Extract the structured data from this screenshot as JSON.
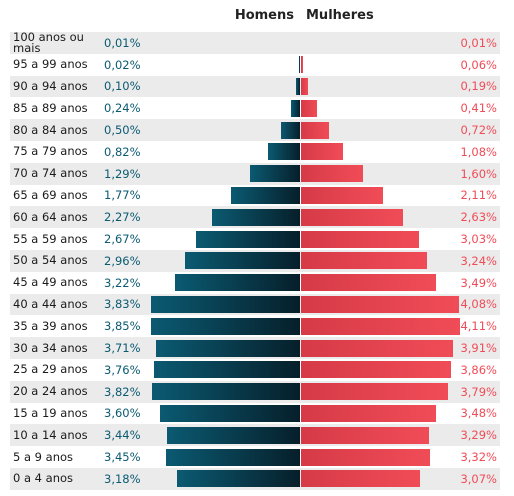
{
  "chart_data": {
    "type": "bar",
    "categories": [
      "100 anos ou mais",
      "95 a 99 anos",
      "90 a 94 anos",
      "85 a 89 anos",
      "80 a 84 anos",
      "75 a 79 anos",
      "70 a 74 anos",
      "65 a 69 anos",
      "60 a 64 anos",
      "55 a 59 anos",
      "50 a 54 anos",
      "45 a 49 anos",
      "40 a 44 anos",
      "35 a 39 anos",
      "30 a 34 anos",
      "25 a 29 anos",
      "20 a 24 anos",
      "15 a 19 anos",
      "10 a 14 anos",
      "5 a 9 anos",
      "0 a 4 anos"
    ],
    "series": [
      {
        "name": "Homens",
        "color": "#0b5a72",
        "values": [
          0.01,
          0.02,
          0.1,
          0.24,
          0.5,
          0.82,
          1.29,
          1.77,
          2.27,
          2.67,
          2.96,
          3.22,
          3.83,
          3.85,
          3.71,
          3.76,
          3.82,
          3.6,
          3.44,
          3.45,
          3.18
        ],
        "value_labels": [
          "0,01%",
          "0,02%",
          "0,10%",
          "0,24%",
          "0,50%",
          "0,82%",
          "1,29%",
          "1,77%",
          "2,27%",
          "2,67%",
          "2,96%",
          "3,22%",
          "3,83%",
          "3,85%",
          "3,71%",
          "3,76%",
          "3,82%",
          "3,60%",
          "3,44%",
          "3,45%",
          "3,18%"
        ]
      },
      {
        "name": "Mulheres",
        "color": "#f04c57",
        "values": [
          0.01,
          0.06,
          0.19,
          0.41,
          0.72,
          1.08,
          1.6,
          2.11,
          2.63,
          3.03,
          3.24,
          3.49,
          4.08,
          4.11,
          3.91,
          3.86,
          3.79,
          3.48,
          3.29,
          3.32,
          3.07
        ],
        "value_labels": [
          "0,01%",
          "0,06%",
          "0,19%",
          "0,41%",
          "0,72%",
          "1,08%",
          "1,60%",
          "2,11%",
          "2,63%",
          "3,03%",
          "3,24%",
          "3,49%",
          "4,08%",
          "4,11%",
          "3,91%",
          "3,86%",
          "3,79%",
          "3,48%",
          "3,29%",
          "3,32%",
          "3,07%"
        ]
      }
    ]
  }
}
